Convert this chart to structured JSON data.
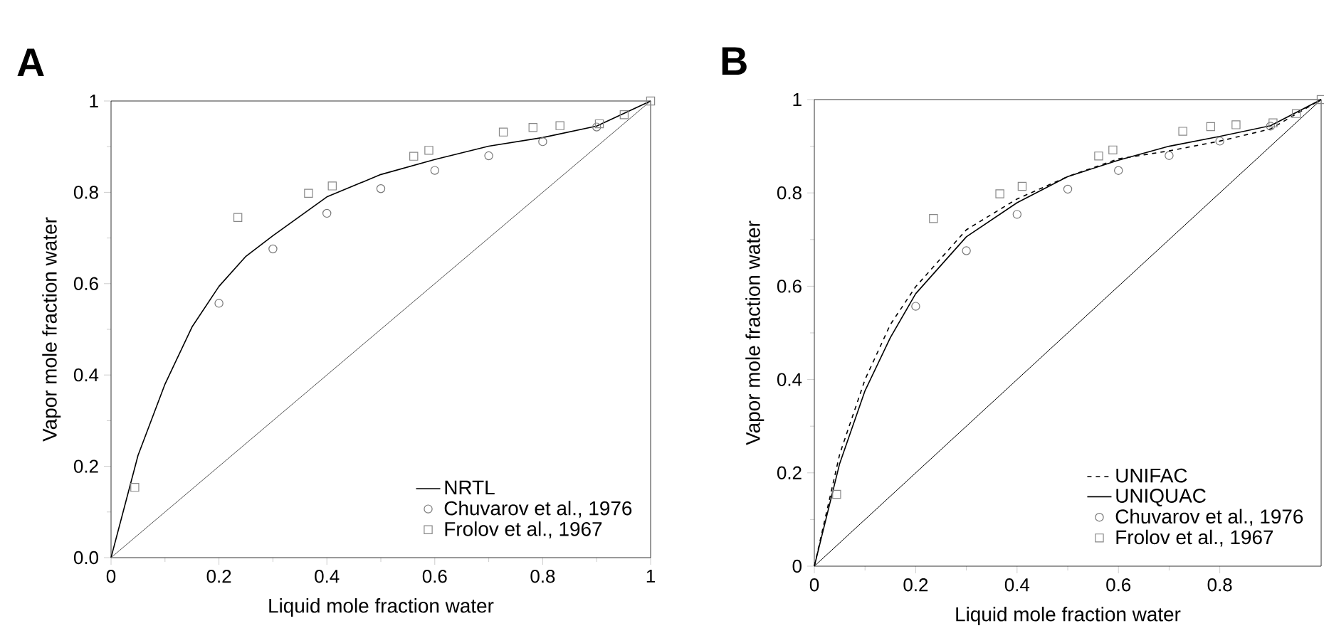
{
  "chart_data": [
    {
      "type": "line",
      "title": "A",
      "xlabel": "Liquid mole fraction water",
      "ylabel": "Vapor mole fraction water",
      "xlim": [
        0,
        1
      ],
      "ylim": [
        0,
        1
      ],
      "xticks": [
        0,
        0.2,
        0.4,
        0.6,
        0.8,
        1
      ],
      "yticks": [
        {
          "value": 0,
          "label": "0.0"
        },
        0.2,
        0.4,
        0.6,
        0.8,
        1
      ],
      "legend": "bottom right",
      "series": [
        {
          "name": "NRTL",
          "color": "#000000",
          "line_style": "solid",
          "marker": "none",
          "x": [
            0,
            0.05,
            0.1,
            0.15,
            0.2,
            0.25,
            0.3,
            0.4,
            0.5,
            0.6,
            0.7,
            0.8,
            0.9,
            1
          ],
          "values": [
            0,
            0.224,
            0.38,
            0.505,
            0.594,
            0.66,
            0.705,
            0.79,
            0.839,
            0.872,
            0.901,
            0.92,
            0.945,
            1
          ]
        },
        {
          "color": "#555555",
          "line_style": "solid",
          "marker": "none",
          "x": [
            0,
            1
          ],
          "values": [
            0,
            1
          ]
        },
        {
          "name": "Chuvarov et al., 1976",
          "type": "scatter",
          "color": "#777777",
          "marker": "circle",
          "x": [
            0.2,
            0.3,
            0.4,
            0.5,
            0.6,
            0.7,
            0.8,
            0.9
          ],
          "values": [
            0.557,
            0.676,
            0.754,
            0.808,
            0.848,
            0.88,
            0.911,
            0.943
          ]
        },
        {
          "name": "Frolov et al., 1967",
          "type": "scatter",
          "color": "#888888",
          "marker": "square",
          "x": [
            0.044,
            0.235,
            0.366,
            0.41,
            0.561,
            0.589,
            0.727,
            0.782,
            0.832,
            0.905,
            0.951,
            1
          ],
          "values": [
            0.154,
            0.745,
            0.798,
            0.814,
            0.879,
            0.892,
            0.932,
            0.942,
            0.946,
            0.95,
            0.97,
            1
          ]
        }
      ]
    },
    {
      "type": "line",
      "title": "B",
      "xlabel": "Liquid mole fraction water",
      "ylabel": "Vapor mole fraction water",
      "xlim": [
        0,
        1
      ],
      "ylim": [
        0,
        1
      ],
      "xticks": [
        0,
        0.2,
        0.4,
        0.6,
        0.8
      ],
      "yticks": [
        0,
        0.2,
        0.4,
        0.6,
        0.8,
        1
      ],
      "legend": "bottom right",
      "series": [
        {
          "name": "UNIFAC",
          "color": "#000000",
          "line_style": "dashed",
          "marker": "none",
          "x": [
            0,
            0.05,
            0.1,
            0.15,
            0.2,
            0.3,
            0.4,
            0.5,
            0.6,
            0.7,
            0.8,
            0.9,
            1
          ],
          "values": [
            0,
            0.24,
            0.4,
            0.518,
            0.599,
            0.721,
            0.787,
            0.835,
            0.873,
            0.89,
            0.911,
            0.937,
            1
          ]
        },
        {
          "name": "UNIQUAC",
          "color": "#000000",
          "line_style": "solid",
          "marker": "none",
          "x": [
            0,
            0.05,
            0.1,
            0.15,
            0.2,
            0.3,
            0.4,
            0.5,
            0.6,
            0.7,
            0.8,
            0.9,
            1
          ],
          "values": [
            0,
            0.22,
            0.376,
            0.49,
            0.584,
            0.706,
            0.779,
            0.835,
            0.87,
            0.9,
            0.921,
            0.944,
            1
          ]
        },
        {
          "color": "#000000",
          "line_style": "solid",
          "marker": "none",
          "x": [
            0,
            1
          ],
          "values": [
            0,
            1
          ]
        },
        {
          "name": "Chuvarov et al., 1976",
          "type": "scatter",
          "color": "#777777",
          "marker": "circle",
          "x": [
            0.2,
            0.3,
            0.4,
            0.5,
            0.6,
            0.7,
            0.8,
            0.9
          ],
          "values": [
            0.557,
            0.676,
            0.754,
            0.808,
            0.848,
            0.88,
            0.911,
            0.943
          ]
        },
        {
          "name": "Frolov et al., 1967",
          "type": "scatter",
          "color": "#888888",
          "marker": "square",
          "x": [
            0.044,
            0.235,
            0.366,
            0.41,
            0.561,
            0.589,
            0.727,
            0.782,
            0.832,
            0.905,
            0.951,
            1
          ],
          "values": [
            0.154,
            0.745,
            0.798,
            0.814,
            0.879,
            0.892,
            0.932,
            0.942,
            0.946,
            0.95,
            0.97,
            1
          ]
        }
      ]
    }
  ]
}
